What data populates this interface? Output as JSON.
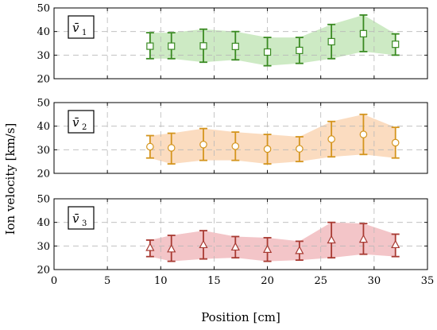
{
  "chart_data": {
    "type": "line",
    "xlabel": "Position [cm]",
    "ylabel": "Ion velocity [km/s]",
    "xlim": [
      0,
      35
    ],
    "xticks": [
      0,
      5,
      10,
      15,
      20,
      25,
      30,
      35
    ],
    "grid": true,
    "x": [
      9,
      11,
      14,
      17,
      20,
      23,
      26,
      29,
      32
    ],
    "panels": [
      {
        "label": "v̄",
        "subscript": "1",
        "ylim": [
          20,
          50
        ],
        "yticks": [
          20,
          30,
          40,
          50
        ],
        "marker": "square",
        "color": "#3a8a22",
        "fill_color": "#cdeac4",
        "values": [
          33.8,
          33.8,
          33.9,
          33.7,
          31.3,
          32.0,
          35.7,
          39.1,
          34.6
        ],
        "err_low": [
          28.5,
          28.5,
          27.0,
          28.0,
          25.5,
          26.5,
          28.5,
          31.5,
          30.0
        ],
        "err_high": [
          39.5,
          39.5,
          41.0,
          40.0,
          37.5,
          37.5,
          43.0,
          47.0,
          39.0
        ]
      },
      {
        "label": "v̄",
        "subscript": "2",
        "ylim": [
          20,
          50
        ],
        "yticks": [
          20,
          30,
          40,
          50
        ],
        "marker": "circle",
        "color": "#d4951e",
        "fill_color": "#fbdcc0",
        "values": [
          31.3,
          30.8,
          32.2,
          31.5,
          30.3,
          30.4,
          34.5,
          36.5,
          33.0
        ],
        "err_low": [
          26.5,
          24.0,
          25.5,
          25.5,
          24.0,
          25.0,
          27.0,
          28.0,
          26.5
        ],
        "err_high": [
          36.0,
          37.0,
          39.0,
          37.5,
          36.5,
          35.5,
          42.0,
          45.0,
          39.5
        ]
      },
      {
        "label": "v̄",
        "subscript": "3",
        "ylim": [
          20,
          50
        ],
        "yticks": [
          20,
          30,
          40,
          50
        ],
        "marker": "triangle",
        "color": "#a83a32",
        "fill_color": "#f3c5c8",
        "values": [
          29.3,
          28.7,
          30.5,
          29.5,
          28.5,
          28.0,
          32.5,
          32.8,
          30.5
        ],
        "err_low": [
          25.5,
          23.5,
          24.5,
          25.0,
          23.5,
          24.0,
          25.0,
          26.5,
          25.5
        ],
        "err_high": [
          32.5,
          34.5,
          36.5,
          34.0,
          33.5,
          32.0,
          40.0,
          39.5,
          35.0
        ]
      }
    ]
  }
}
